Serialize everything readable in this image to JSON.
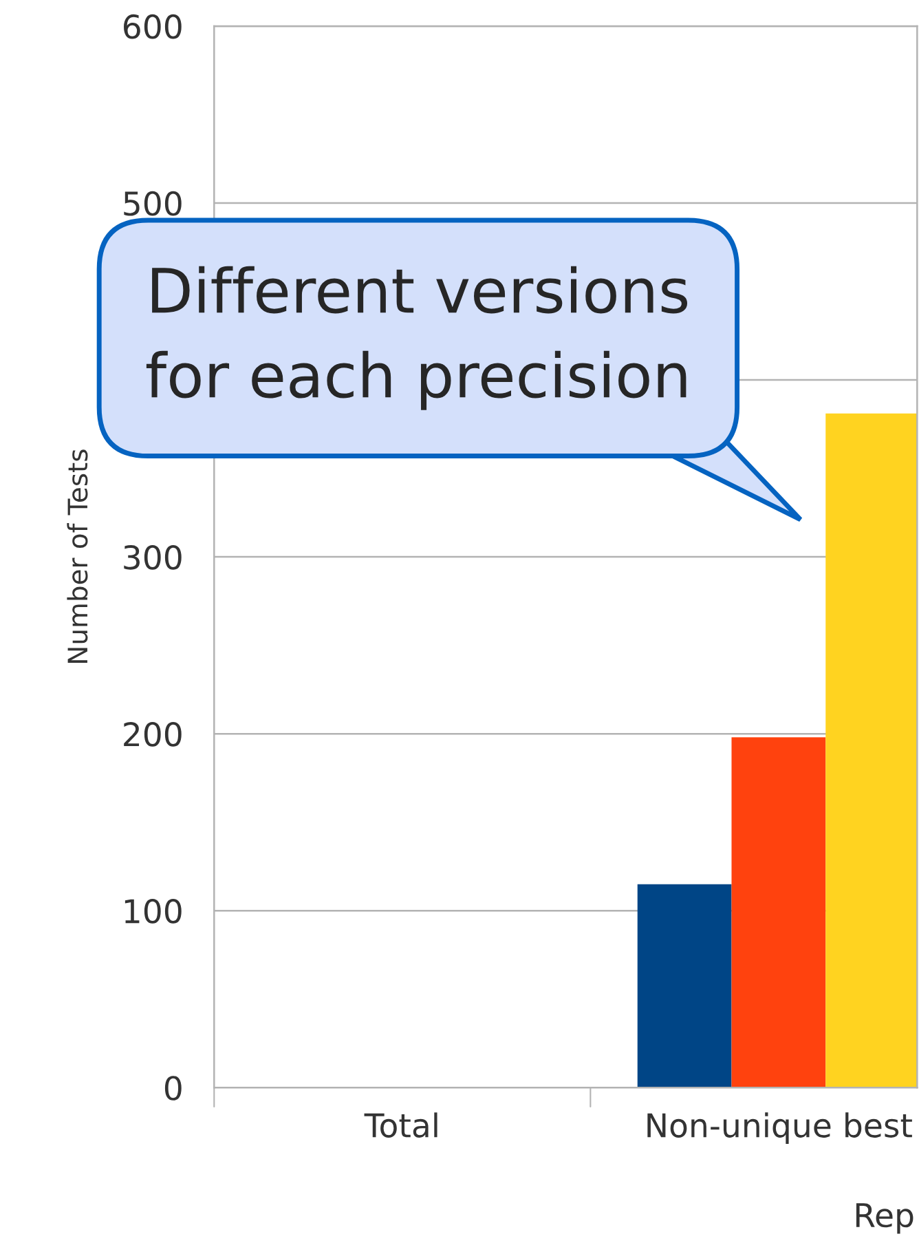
{
  "chart_data": {
    "type": "bar",
    "categories": [
      "Total",
      "Non-unique best"
    ],
    "series": [
      {
        "color": "#004586",
        "values": [
          null,
          115
        ]
      },
      {
        "color": "#ff420e",
        "values": [
          null,
          198
        ]
      },
      {
        "color": "#ffd320",
        "values": [
          null,
          381
        ]
      }
    ],
    "xlabel": "Rep",
    "ylabel": "Number of Tests",
    "ylim": [
      0,
      600
    ],
    "yticks": [
      0,
      100,
      200,
      300,
      {
        "value": 400,
        "label": null
      },
      500,
      600
    ],
    "grid": "y",
    "annotations": [
      "Different versions\nfor each precision"
    ]
  }
}
